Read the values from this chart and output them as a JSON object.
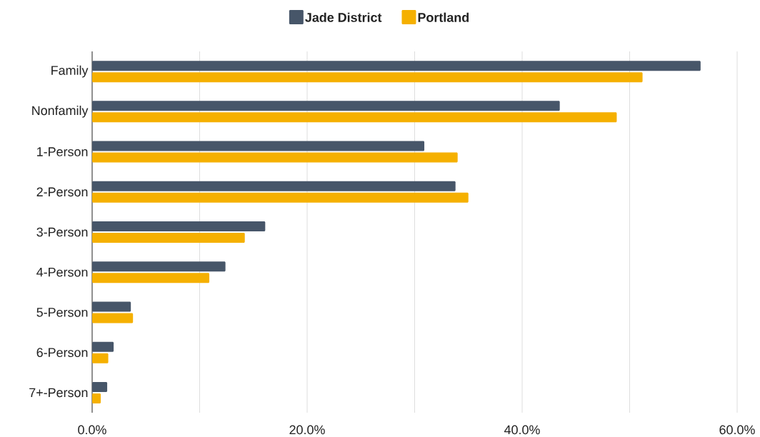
{
  "chart_data": {
    "type": "bar",
    "orientation": "horizontal",
    "categories": [
      "Family",
      "Nonfamily",
      "1-Person",
      "2-Person",
      "3-Person",
      "4-Person",
      "5-Person",
      "6-Person",
      "7+-Person"
    ],
    "series": [
      {
        "name": "Jade District",
        "color": "#475669",
        "values": [
          56.6,
          43.5,
          30.9,
          33.8,
          16.1,
          12.4,
          3.6,
          2.0,
          1.4
        ]
      },
      {
        "name": "Portland",
        "color": "#f5b000",
        "values": [
          51.2,
          48.8,
          34.0,
          35.0,
          14.2,
          10.9,
          3.8,
          1.5,
          0.8
        ]
      }
    ],
    "xlim": [
      0,
      60
    ],
    "xticks": [
      {
        "value": 0,
        "label": "0.0%"
      },
      {
        "value": 10,
        "label": null
      },
      {
        "value": 20,
        "label": "20.0%"
      },
      {
        "value": 30,
        "label": null
      },
      {
        "value": 40,
        "label": "40.0%"
      },
      {
        "value": 50,
        "label": null
      },
      {
        "value": 60,
        "label": "60.0%"
      }
    ],
    "grid": "x",
    "legend": "top"
  }
}
